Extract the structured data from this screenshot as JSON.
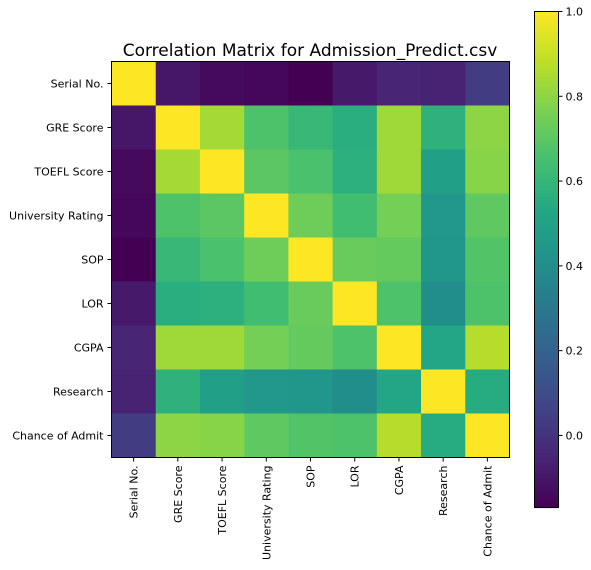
{
  "chart_data": {
    "type": "heatmap",
    "title": "Correlation Matrix for Admission_Predict.csv",
    "xlabel": "",
    "ylabel": "",
    "x_categories": [
      "Serial No.",
      "GRE Score",
      "TOEFL Score",
      "University Rating",
      "SOP",
      "LOR ",
      "CGPA",
      "Research",
      "Chance of Admit "
    ],
    "y_categories": [
      "Serial No.",
      "GRE Score",
      "TOEFL Score",
      "University Rating",
      "SOP",
      "LOR ",
      "CGPA",
      "Research",
      "Chance of Admit "
    ],
    "values": [
      [
        1.0,
        -0.1,
        -0.14,
        -0.15,
        -0.17,
        -0.09,
        -0.05,
        -0.06,
        0.04
      ],
      [
        -0.1,
        1.0,
        0.84,
        0.67,
        0.61,
        0.56,
        0.83,
        0.58,
        0.8
      ],
      [
        -0.14,
        0.84,
        1.0,
        0.7,
        0.66,
        0.57,
        0.83,
        0.49,
        0.79
      ],
      [
        -0.15,
        0.67,
        0.7,
        1.0,
        0.74,
        0.64,
        0.75,
        0.45,
        0.71
      ],
      [
        -0.17,
        0.61,
        0.66,
        0.74,
        1.0,
        0.73,
        0.72,
        0.44,
        0.68
      ],
      [
        -0.09,
        0.56,
        0.57,
        0.64,
        0.73,
        1.0,
        0.67,
        0.4,
        0.67
      ],
      [
        -0.05,
        0.83,
        0.83,
        0.75,
        0.72,
        0.67,
        1.0,
        0.52,
        0.87
      ],
      [
        -0.06,
        0.58,
        0.49,
        0.45,
        0.44,
        0.4,
        0.52,
        1.0,
        0.55
      ],
      [
        0.04,
        0.8,
        0.79,
        0.71,
        0.68,
        0.67,
        0.87,
        0.55,
        1.0
      ]
    ],
    "colormap": "viridis",
    "vmin": -0.17,
    "vmax": 1.0,
    "colorbar_ticks": [
      1.0,
      0.8,
      0.6,
      0.4,
      0.2,
      0.0
    ],
    "colorbar_tick_labels": [
      "1.0",
      "0.8",
      "0.6",
      "0.4",
      "0.2",
      "0.0"
    ],
    "grid": false,
    "colorbar_position": "right"
  }
}
